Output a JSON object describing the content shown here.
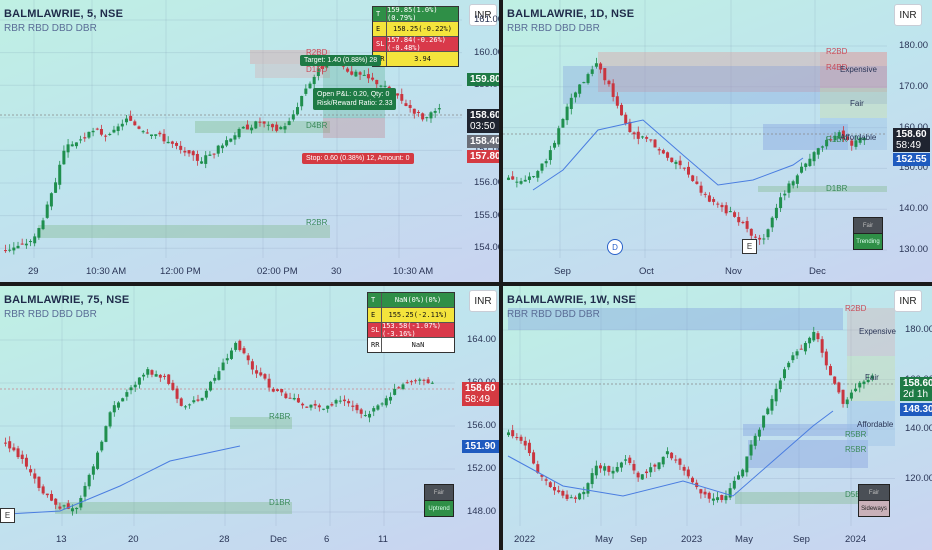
{
  "panes": [
    {
      "symbol": "BALMLAWRIE, 5, NSE",
      "indicator": "RBR RBD DBD DBR",
      "currency": "INR",
      "yticks": [
        "161.00",
        "160.00",
        "159.00",
        "158.00",
        "157.00",
        "156.00",
        "155.00",
        "154.00"
      ],
      "xticks": [
        "29",
        "10:30 AM",
        "12:00 PM",
        "02:00 PM",
        "30",
        "10:30 AM"
      ],
      "last_price": "158.60",
      "countdown": "03:50",
      "tag_target": "159.80",
      "tag_open": "158.40",
      "tag_stop": "157.80",
      "table": [
        {
          "k": "T",
          "v": "159.85(1.0%)(0.79%)"
        },
        {
          "k": "E",
          "v": "158.25(-0.22%)"
        },
        {
          "k": "SL",
          "v": "157.84(-0.26%)(-0.48%)"
        },
        {
          "k": "RR",
          "v": "3.94"
        }
      ],
      "badge_target": "Target: 1.40 (0.88%) 28",
      "badge_open": "Open P&L: 0.20, Qty: 0\nRisk/Reward Ratio: 2.33",
      "badge_stop": "Stop: 0.60 (0.38%) 12, Amount: 0",
      "zones": [
        "R2BD",
        "D1BD",
        "D4BR",
        "R2BR"
      ]
    },
    {
      "symbol": "BALMLAWRIE, 1D, NSE",
      "indicator": "RBR RBD DBD DBR",
      "currency": "INR",
      "yticks": [
        "180.00",
        "170.00",
        "160.00",
        "150.00",
        "140.00",
        "130.00"
      ],
      "xticks": [
        "Sep",
        "Oct",
        "Nov",
        "Dec"
      ],
      "last_price": "158.60",
      "countdown": "58:49",
      "ma_price": "152.55",
      "zones": [
        "R2BD",
        "R4BD",
        "R1BR",
        "D1BR"
      ],
      "levels": [
        "Expensive",
        "Fair",
        "Affordable"
      ],
      "mini_labels": [
        "Fair",
        "Trending"
      ],
      "marks": [
        "D",
        "E"
      ]
    },
    {
      "symbol": "BALMLAWRIE, 75, NSE",
      "indicator": "RBR RBD DBD DBR",
      "currency": "INR",
      "yticks": [
        "164.00",
        "160.00",
        "156.00",
        "152.00",
        "148.00",
        "144.00"
      ],
      "xticks": [
        "13",
        "20",
        "28",
        "Dec",
        "6",
        "11"
      ],
      "last_price": "158.60",
      "countdown": "58:49",
      "ma_price": "151.90",
      "table": [
        {
          "k": "T",
          "v": "NaN(0%)(0%)"
        },
        {
          "k": "E",
          "v": "155.25(-2.11%)"
        },
        {
          "k": "SL",
          "v": "153.58(-1.07%)(-3.16%)"
        },
        {
          "k": "RR",
          "v": "NaN"
        }
      ],
      "zones": [
        "R4BR",
        "D1BR"
      ],
      "mini_labels": [
        "Fair",
        "Uptrend"
      ],
      "marks": [
        "E"
      ]
    },
    {
      "symbol": "BALMLAWRIE, 1W, NSE",
      "indicator": "RBR RBD DBD DBR",
      "currency": "INR",
      "yticks": [
        "180.00",
        "160.00",
        "140.00",
        "120.00"
      ],
      "xticks": [
        "2022",
        "May",
        "Sep",
        "2023",
        "May",
        "Sep",
        "2024"
      ],
      "last_price": "158.60",
      "countdown": "2d 1h",
      "ma_price": "148.30",
      "zones": [
        "R2BD",
        "R5BR",
        "R5BR",
        "D5BR"
      ],
      "levels": [
        "Expensive",
        "Fair",
        "Affordable"
      ],
      "mini_labels": [
        "Fair",
        "Sideways"
      ]
    }
  ],
  "colors": {
    "up": "#1f8f4e",
    "down": "#c9353f",
    "ma": "#4a7de0",
    "green_tag": "#1e7a45",
    "red_tag": "#d43a42",
    "blue_tag": "#1f5bbf",
    "dark_tag": "#1f2430"
  }
}
